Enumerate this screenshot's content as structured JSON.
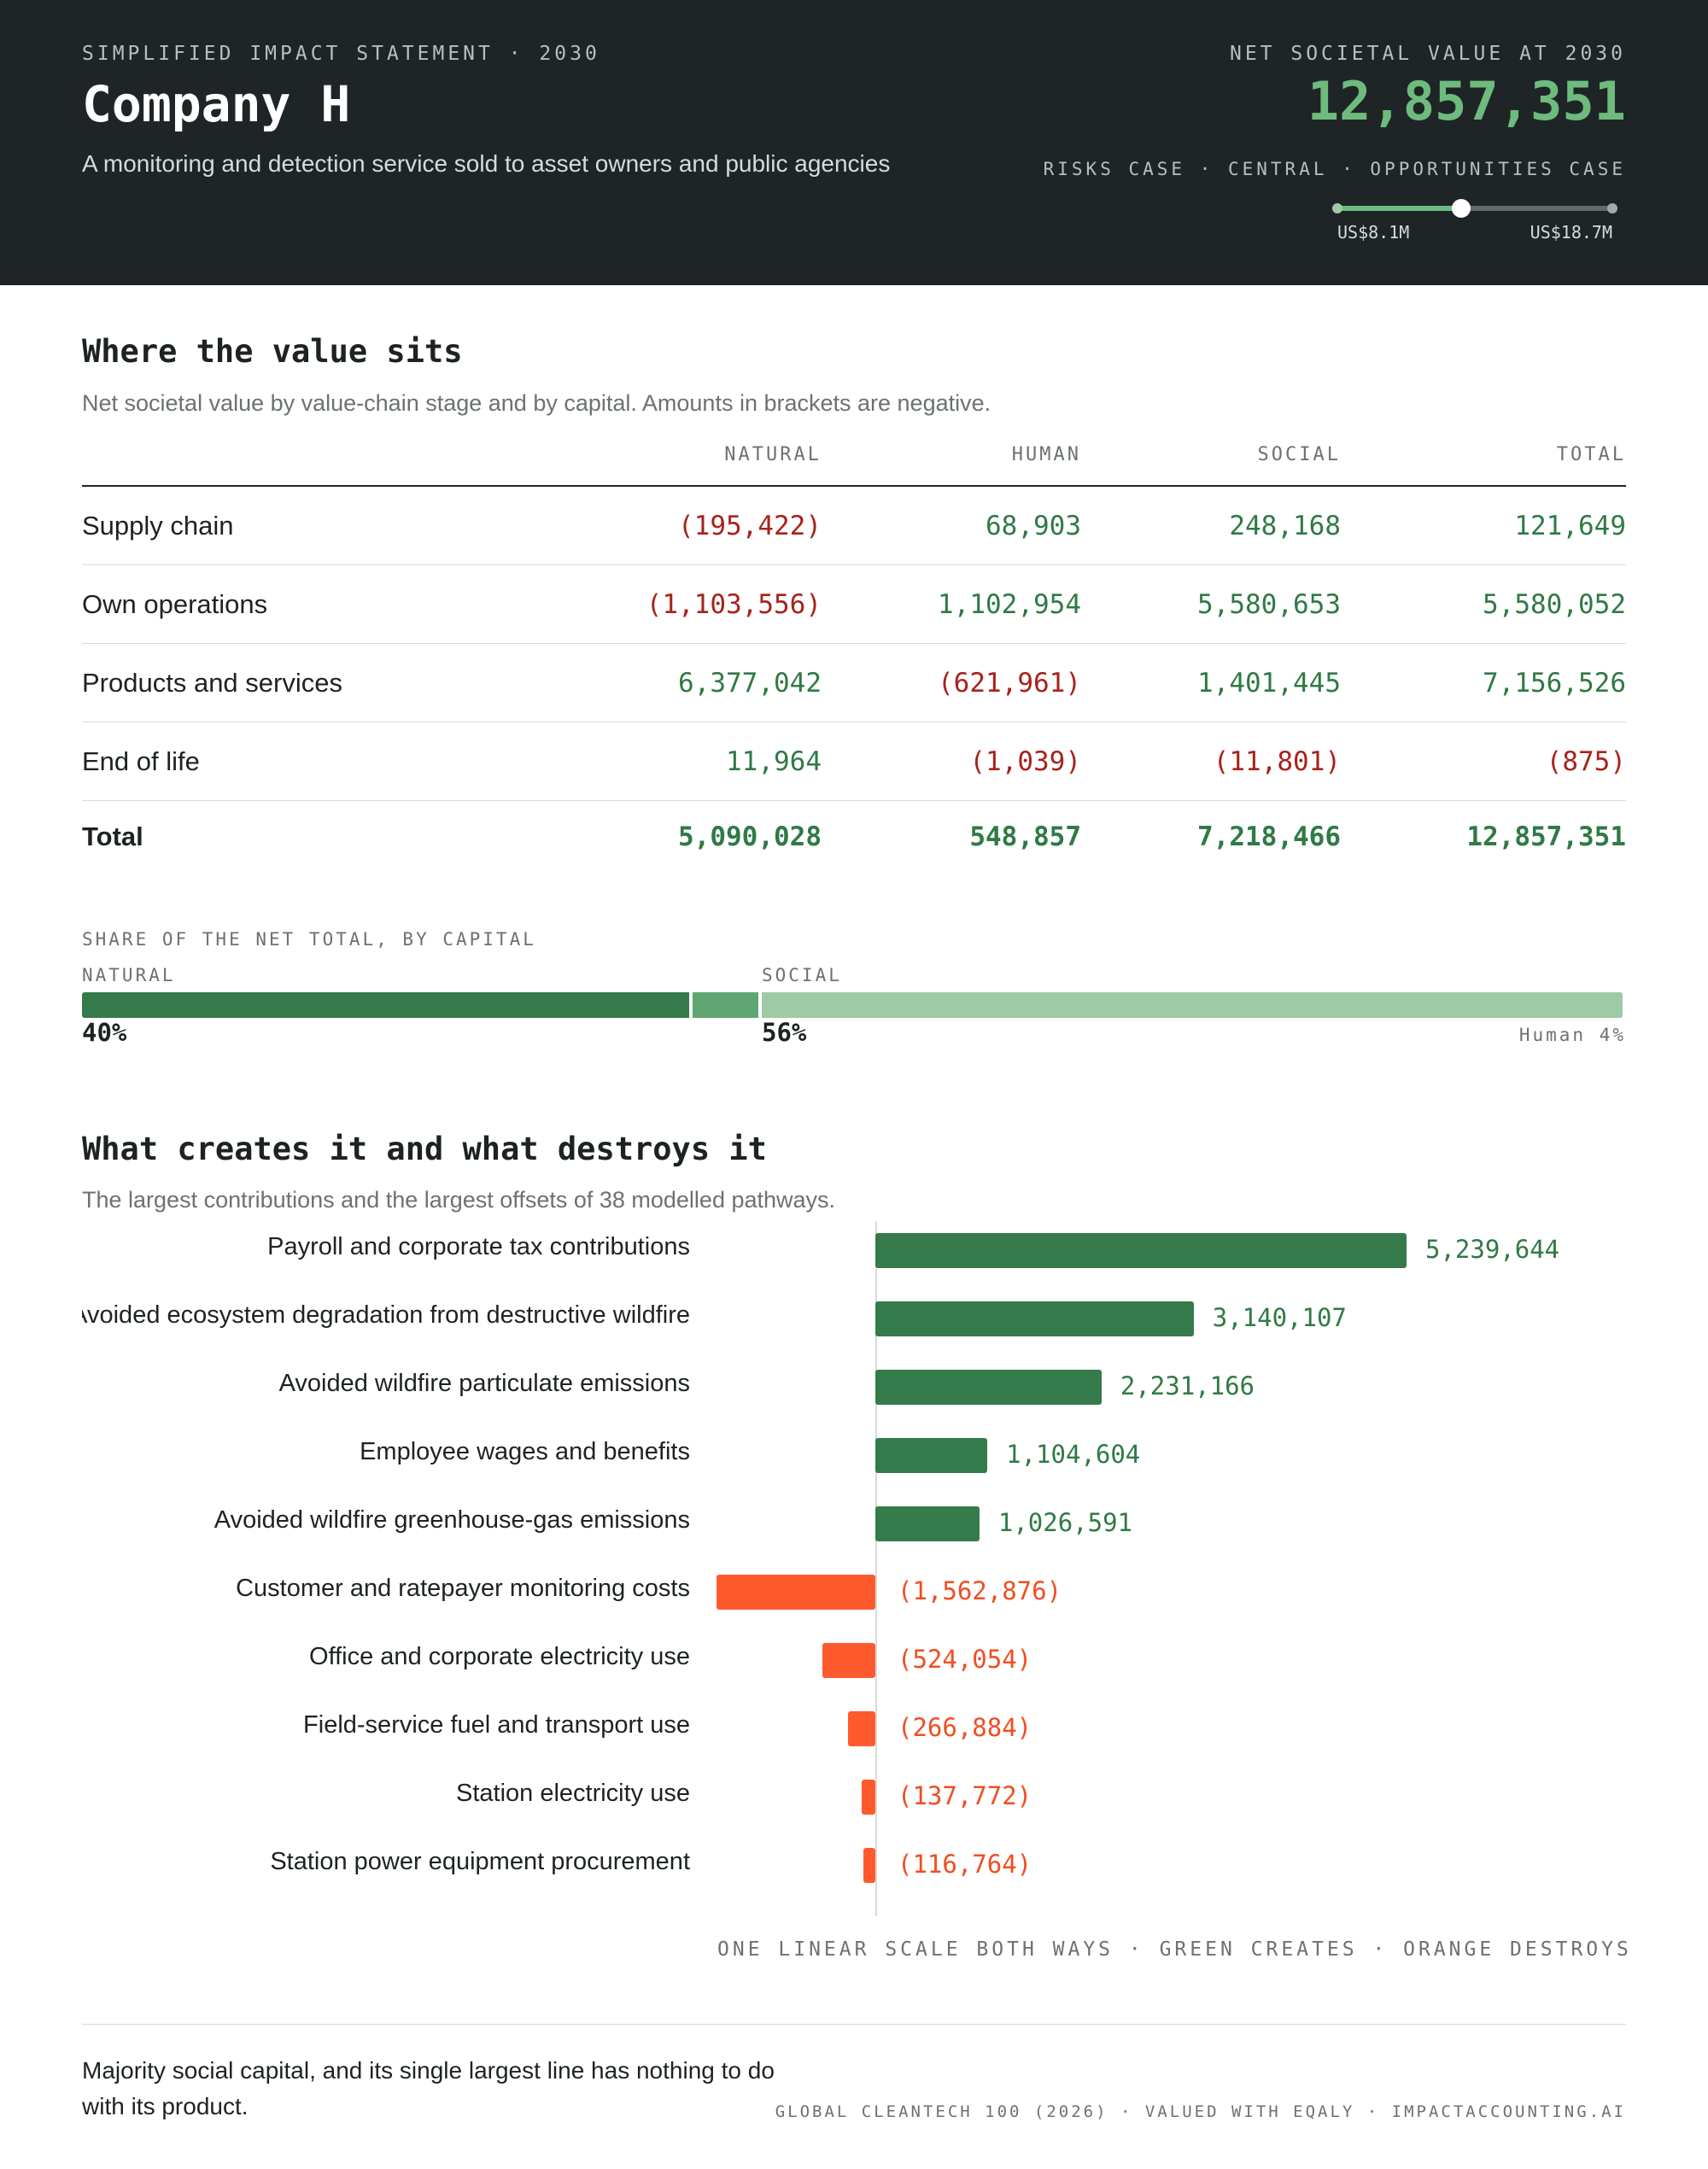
{
  "header": {
    "eyebrow": "SIMPLIFIED IMPACT STATEMENT · 2030",
    "company": "Company H",
    "subtitle": "A monitoring and detection service sold to asset owners and public agencies",
    "net_label": "NET SOCIETAL VALUE AT 2030",
    "net_value": "12,857,351",
    "scenarios": "RISKS CASE · CENTRAL · OPPORTUNITIES CASE",
    "range_low": "US$8.1M",
    "range_high": "US$18.7M",
    "range_low_value": 8.1,
    "range_high_value": 18.7,
    "central_value": 12.857351,
    "colors": {
      "background": "#1f2527",
      "accent": "#6dbb7d"
    }
  },
  "value_table": {
    "heading": "Where the value sits",
    "description": "Net societal value by value-chain stage and by capital. Amounts in brackets are negative.",
    "columns": [
      "NATURAL",
      "HUMAN",
      "SOCIAL",
      "TOTAL"
    ],
    "rows": [
      {
        "label": "Supply chain",
        "values": [
          "(195,422)",
          "68,903",
          "248,168",
          "121,649"
        ]
      },
      {
        "label": "Own operations",
        "values": [
          "(1,103,556)",
          "1,102,954",
          "5,580,653",
          "5,580,052"
        ]
      },
      {
        "label": "Products and services",
        "values": [
          "6,377,042",
          "(621,961)",
          "1,401,445",
          "7,156,526"
        ]
      },
      {
        "label": "End of life",
        "values": [
          "11,964",
          "(1,039)",
          "(11,801)",
          "(875)"
        ]
      }
    ],
    "total": {
      "label": "Total",
      "values": [
        "5,090,028",
        "548,857",
        "7,218,466",
        "12,857,351"
      ]
    }
  },
  "share": {
    "label": "SHARE OF THE NET TOTAL, BY CAPITAL",
    "natural_label": "NATURAL",
    "social_label": "SOCIAL",
    "natural_pct": "40%",
    "social_pct": "56%",
    "human_note": "Human 4%",
    "fractions": {
      "natural": 0.396,
      "human": 0.043,
      "social": 0.561
    },
    "colors": {
      "natural": "#357a4a",
      "human": "#5fa672",
      "social": "#9ecba6"
    }
  },
  "contributions": {
    "heading": "What creates it and what destroys it",
    "description": "The largest contributions and the largest offsets of 38 modelled pathways.",
    "scale_note": "ONE LINEAR SCALE BOTH WAYS · GREEN CREATES · ORANGE DESTROYS",
    "colors": {
      "creates": "#357a4a",
      "destroys": "#ff5a2e"
    }
  },
  "chart_data": {
    "type": "bar",
    "orientation": "horizontal",
    "categories": [
      "Payroll and corporate tax contributions",
      "Avoided ecosystem degradation from destructive wildfire",
      "Avoided wildfire particulate emissions",
      "Employee wages and benefits",
      "Avoided wildfire greenhouse-gas emissions",
      "Customer and ratepayer monitoring costs",
      "Office and corporate electricity use",
      "Field-service fuel and transport use",
      "Station electricity use",
      "Station power equipment procurement"
    ],
    "values": [
      5239644,
      3140107,
      2231166,
      1104604,
      1026591,
      -1562876,
      -524054,
      -266884,
      -137772,
      -116764
    ],
    "value_labels": [
      "5,239,644",
      "3,140,107",
      "2,231,166",
      "1,104,604",
      "1,026,591",
      "(1,562,876)",
      "(524,054)",
      "(266,884)",
      "(137,772)",
      "(116,764)"
    ]
  },
  "footer": {
    "text": "Majority social capital, and its single largest line has nothing to do with its product.",
    "credit": "GLOBAL CLEANTECH 100 (2026) · VALUED WITH EQALY · IMPACTACCOUNTING.AI"
  }
}
